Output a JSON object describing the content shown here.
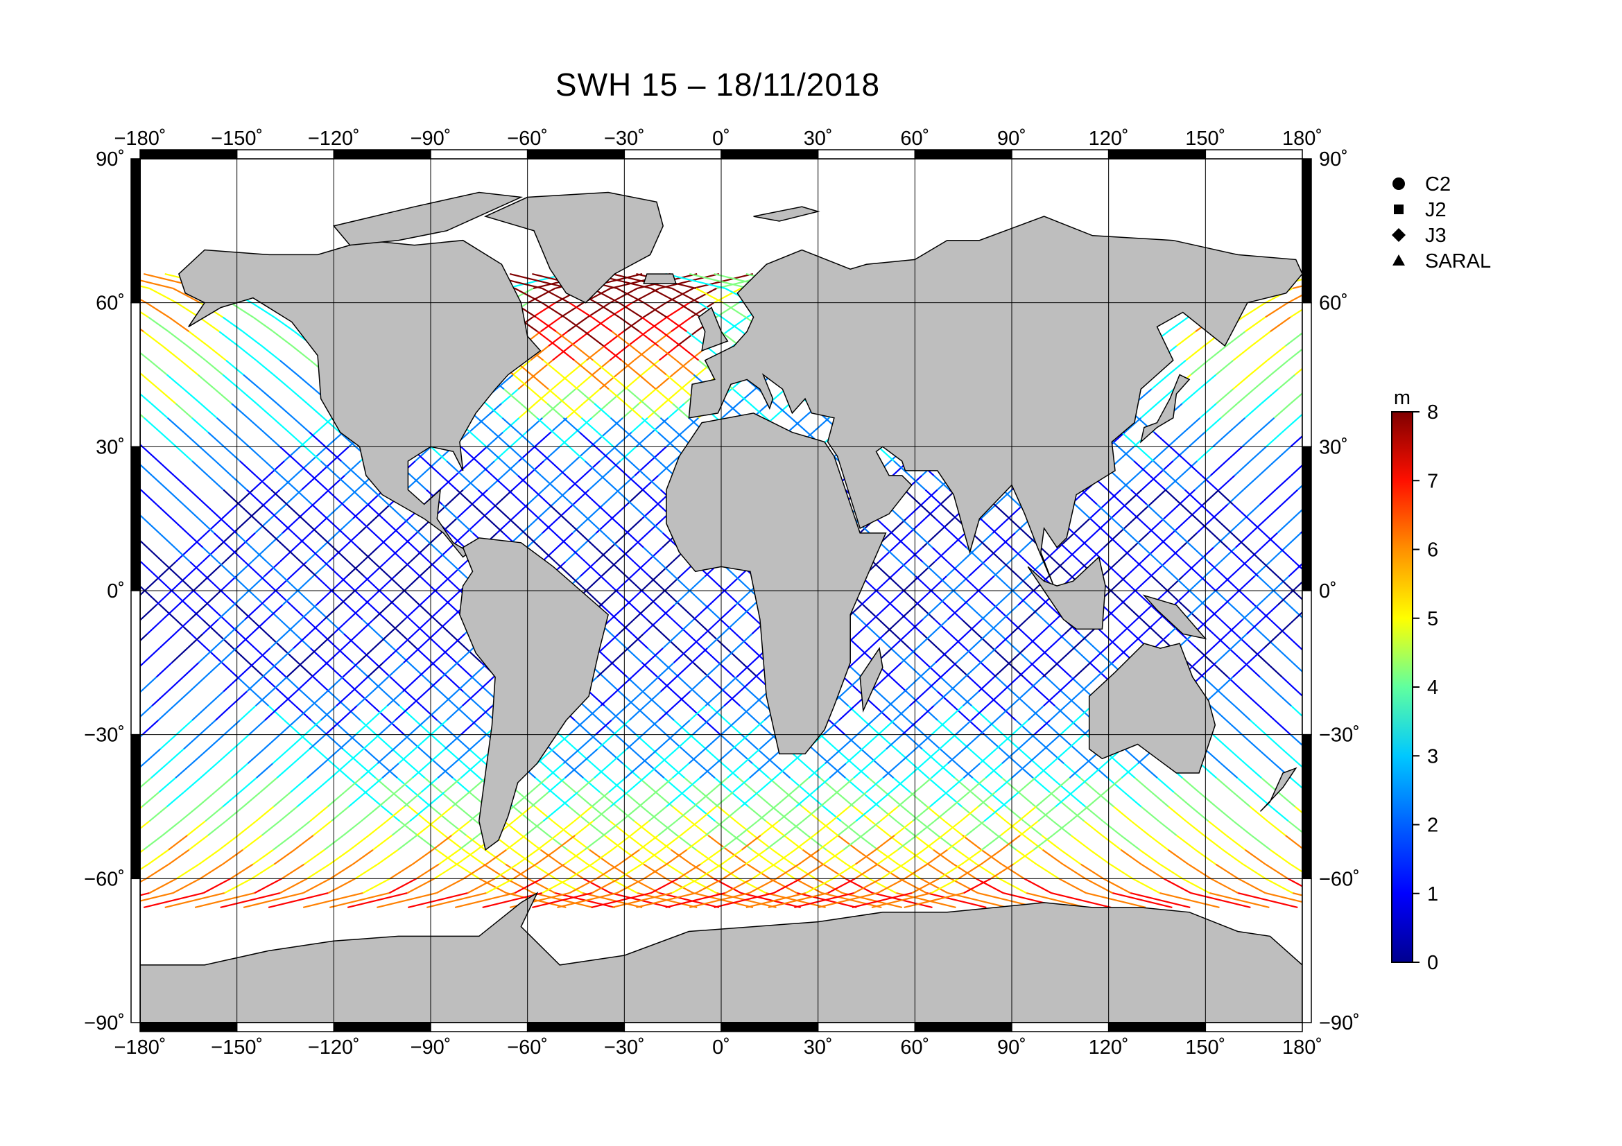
{
  "title": "SWH 15 – 18/11/2018",
  "lon_labels": [
    "−180˚",
    "−150˚",
    "−120˚",
    "−90˚",
    "−60˚",
    "−30˚",
    "0˚",
    "30˚",
    "60˚",
    "90˚",
    "120˚",
    "150˚",
    "180˚"
  ],
  "lat_labels": [
    "90˚",
    "60˚",
    "30˚",
    "0˚",
    "−30˚",
    "−60˚",
    "−90˚"
  ],
  "legend": [
    {
      "label": "C2",
      "marker": "circle"
    },
    {
      "label": "J2",
      "marker": "square"
    },
    {
      "label": "J3",
      "marker": "diamond"
    },
    {
      "label": "SARAL",
      "marker": "triangle"
    }
  ],
  "colorbar": {
    "unit": "m",
    "ticks": [
      "0",
      "1",
      "2",
      "3",
      "4",
      "5",
      "6",
      "7",
      "8"
    ],
    "range": [
      0,
      8
    ],
    "colors": [
      "#00008f",
      "#0000ff",
      "#0080ff",
      "#00ffff",
      "#80ff80",
      "#ffff00",
      "#ff8000",
      "#ff0000",
      "#800000"
    ]
  },
  "colors": {
    "land": "#bebebe",
    "ocean": "#ffffff",
    "frame": "#000000"
  }
}
